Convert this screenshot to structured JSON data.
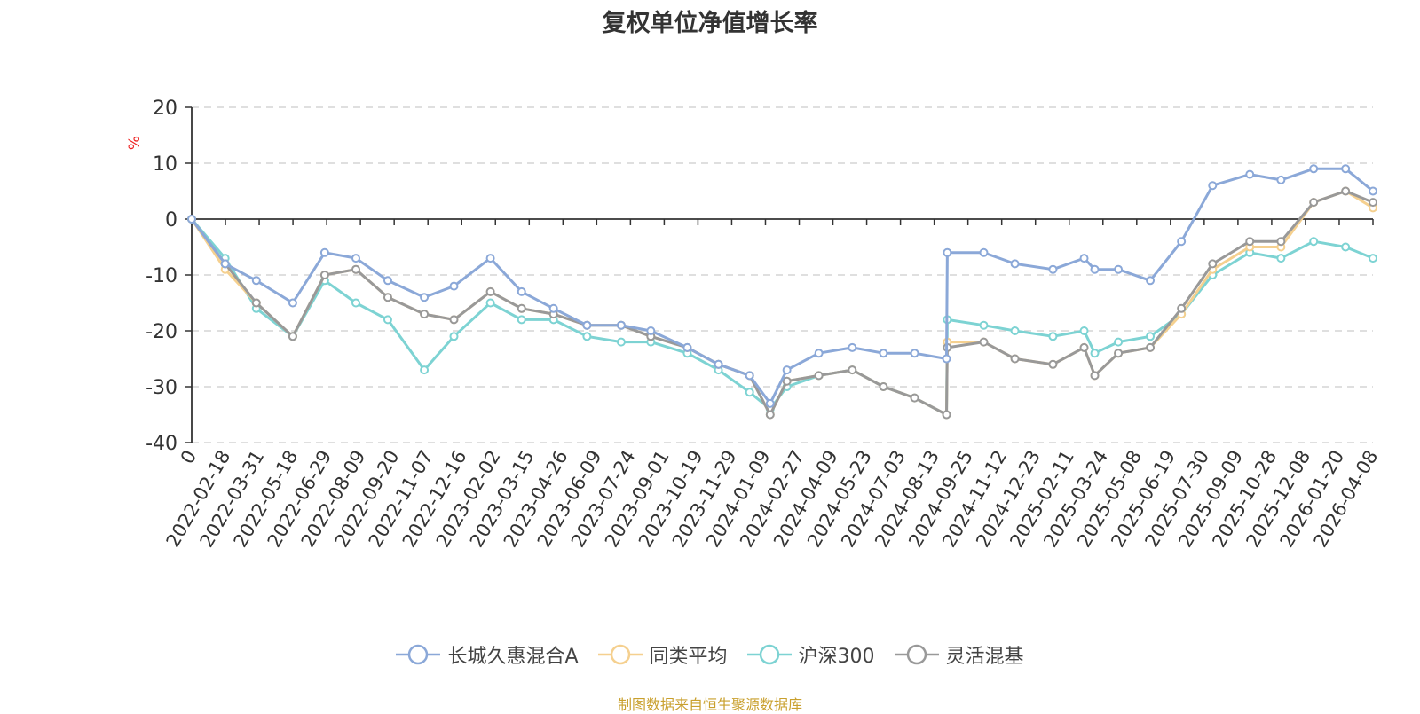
{
  "title": "复权单位净值增长率",
  "source_note": "制图数据来自恒生聚源数据库",
  "colors": {
    "fund": "#8ba8d8",
    "category_avg": "#f5d08f",
    "csi300": "#7dd3d3",
    "flexible_mixed": "#999999",
    "source_note": "#c9a02e",
    "ylabel": "#ee2222",
    "grid": "#cccccc"
  },
  "chart_data": {
    "type": "line",
    "title": "复权单位净值增长率",
    "ylabel": "%",
    "ylim": [
      -40,
      20
    ],
    "yticks": [
      20,
      10,
      0,
      -10,
      -20,
      -30,
      -40
    ],
    "grid": "horizontal dashed",
    "legend_position": "bottom",
    "x_tick_labels": [
      "0",
      "2022-02-18",
      "2022-03-31",
      "2022-05-18",
      "2022-06-29",
      "2022-08-09",
      "2022-09-20",
      "2022-11-07",
      "2022-12-16",
      "2023-02-02",
      "2023-03-15",
      "2023-04-26",
      "2023-06-09",
      "2023-07-24",
      "2023-09-01",
      "2023-10-19",
      "2023-11-29",
      "2024-01-09",
      "2024-02-27",
      "2024-04-09",
      "2024-05-23",
      "2024-07-03",
      "2024-08-13",
      "2024-09-25",
      "2024-11-12",
      "2024-12-23",
      "2025-02-11",
      "2025-03-24",
      "2025-05-08",
      "2025-06-19",
      "2025-07-30",
      "2025-09-09",
      "2025-10-28",
      "2025-12-08",
      "2026-01-20",
      "2026-04-08"
    ],
    "x": [
      "2022-01-05",
      "2022-02-18",
      "2022-03-31",
      "2022-05-18",
      "2022-06-29",
      "2022-08-09",
      "2022-09-20",
      "2022-11-07",
      "2022-12-16",
      "2023-02-02",
      "2023-03-15",
      "2023-04-26",
      "2023-06-09",
      "2023-07-24",
      "2023-09-01",
      "2023-10-19",
      "2023-11-29",
      "2024-01-09",
      "2024-02-05",
      "2024-02-27",
      "2024-04-09",
      "2024-05-23",
      "2024-07-03",
      "2024-08-13",
      "2024-09-24",
      "2024-09-25",
      "2024-11-12",
      "2024-12-23",
      "2025-02-11",
      "2025-03-24",
      "2025-04-07",
      "2025-05-08",
      "2025-06-19",
      "2025-07-30",
      "2025-09-09",
      "2025-10-28",
      "2025-12-08",
      "2026-01-20",
      "2026-03-03",
      "2026-04-08"
    ],
    "series": [
      {
        "name": "长城久惠混合A",
        "color": "#8ba8d8",
        "values": [
          0,
          -8,
          -11,
          -15,
          -6,
          -7,
          -11,
          -14,
          -12,
          -7,
          -13,
          -16,
          -19,
          -19,
          -20,
          -23,
          -26,
          -28,
          -33,
          -27,
          -24,
          -23,
          -24,
          -24,
          -25,
          -6,
          -6,
          -8,
          -9,
          -7,
          -9,
          -9,
          -11,
          -4,
          6,
          8,
          7,
          9,
          9,
          5
        ]
      },
      {
        "name": "同类平均",
        "color": "#f5d08f",
        "values": [
          0,
          -9,
          -15,
          -21,
          -10,
          -9,
          -14,
          -17,
          -18,
          -13,
          -16,
          -17,
          -19,
          -19,
          -21,
          -23,
          -26,
          -28,
          -35,
          -29,
          -28,
          -27,
          -30,
          -32,
          -35,
          -22,
          -22,
          -25,
          -26,
          -23,
          -28,
          -24,
          -23,
          -17,
          -9,
          -5,
          -5,
          3,
          5,
          2
        ]
      },
      {
        "name": "沪深300",
        "color": "#7dd3d3",
        "values": [
          0,
          -7,
          -16,
          -21,
          -11,
          -15,
          -18,
          -27,
          -21,
          -15,
          -18,
          -18,
          -21,
          -22,
          -22,
          -24,
          -27,
          -31,
          -34,
          -30,
          -28,
          -27,
          -30,
          -32,
          -35,
          -18,
          -19,
          -20,
          -21,
          -20,
          -24,
          -22,
          -21,
          -17,
          -10,
          -6,
          -7,
          -4,
          -5,
          -7
        ]
      },
      {
        "name": "灵活混基",
        "color": "#999999",
        "values": [
          0,
          -8,
          -15,
          -21,
          -10,
          -9,
          -14,
          -17,
          -18,
          -13,
          -16,
          -17,
          -19,
          -19,
          -21,
          -23,
          -26,
          -28,
          -35,
          -29,
          -28,
          -27,
          -30,
          -32,
          -35,
          -23,
          -22,
          -25,
          -26,
          -23,
          -28,
          -24,
          -23,
          -16,
          -8,
          -4,
          -4,
          3,
          5,
          3
        ]
      }
    ]
  }
}
